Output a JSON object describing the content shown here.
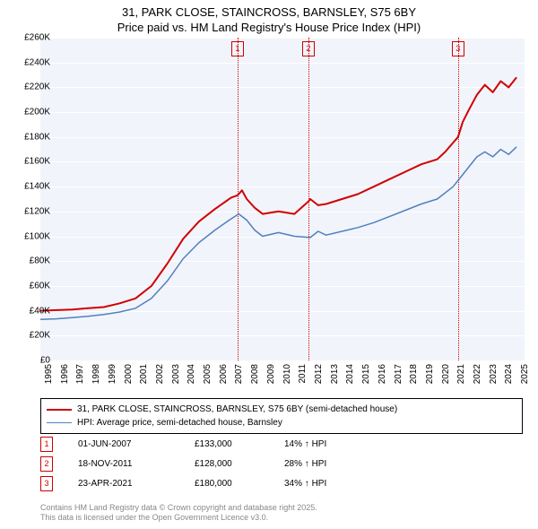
{
  "title_line1": "31, PARK CLOSE, STAINCROSS, BARNSLEY, S75 6BY",
  "title_line2": "Price paid vs. HM Land Registry's House Price Index (HPI)",
  "chart": {
    "type": "line",
    "background_color": "#f2f4fb",
    "grid_color": "#ffffff",
    "x_years": [
      1995,
      1996,
      1997,
      1998,
      1999,
      2000,
      2001,
      2002,
      2003,
      2004,
      2005,
      2006,
      2007,
      2008,
      2009,
      2010,
      2011,
      2012,
      2013,
      2014,
      2015,
      2016,
      2017,
      2018,
      2019,
      2020,
      2021,
      2022,
      2023,
      2024,
      2025
    ],
    "y_ticks": [
      0,
      20000,
      40000,
      60000,
      80000,
      100000,
      120000,
      140000,
      160000,
      180000,
      200000,
      220000,
      240000,
      260000
    ],
    "y_tick_labels": [
      "£0",
      "£20K",
      "£40K",
      "£60K",
      "£80K",
      "£100K",
      "£120K",
      "£140K",
      "£160K",
      "£180K",
      "£200K",
      "£220K",
      "£240K",
      "£260K"
    ],
    "ylim": [
      0,
      260000
    ],
    "xlim": [
      1995,
      2025.5
    ],
    "series": [
      {
        "name": "price_paid",
        "color": "#d00000",
        "width": 2,
        "legend_label": "31, PARK CLOSE, STAINCROSS, BARNSLEY, S75 6BY (semi-detached house)",
        "data": [
          [
            1995,
            40000
          ],
          [
            1996,
            40500
          ],
          [
            1997,
            41000
          ],
          [
            1998,
            42000
          ],
          [
            1999,
            43000
          ],
          [
            2000,
            46000
          ],
          [
            2001,
            50000
          ],
          [
            2002,
            60000
          ],
          [
            2003,
            78000
          ],
          [
            2004,
            98000
          ],
          [
            2005,
            112000
          ],
          [
            2006,
            122000
          ],
          [
            2007,
            131000
          ],
          [
            2007.42,
            133000
          ],
          [
            2007.7,
            137000
          ],
          [
            2008,
            130000
          ],
          [
            2008.5,
            123000
          ],
          [
            2009,
            118000
          ],
          [
            2010,
            120000
          ],
          [
            2011,
            118000
          ],
          [
            2011.88,
            128000
          ],
          [
            2012,
            130000
          ],
          [
            2012.5,
            125000
          ],
          [
            2013,
            126000
          ],
          [
            2014,
            130000
          ],
          [
            2015,
            134000
          ],
          [
            2016,
            140000
          ],
          [
            2017,
            146000
          ],
          [
            2018,
            152000
          ],
          [
            2019,
            158000
          ],
          [
            2020,
            162000
          ],
          [
            2020.5,
            168000
          ],
          [
            2021.31,
            180000
          ],
          [
            2021.6,
            192000
          ],
          [
            2022,
            202000
          ],
          [
            2022.5,
            214000
          ],
          [
            2023,
            222000
          ],
          [
            2023.5,
            216000
          ],
          [
            2024,
            225000
          ],
          [
            2024.5,
            220000
          ],
          [
            2025,
            228000
          ]
        ]
      },
      {
        "name": "hpi",
        "color": "#5080c0",
        "width": 1.5,
        "legend_label": "HPI: Average price, semi-detached house, Barnsley",
        "data": [
          [
            1995,
            33000
          ],
          [
            1996,
            33500
          ],
          [
            1997,
            34500
          ],
          [
            1998,
            35500
          ],
          [
            1999,
            37000
          ],
          [
            2000,
            39000
          ],
          [
            2001,
            42000
          ],
          [
            2002,
            50000
          ],
          [
            2003,
            64000
          ],
          [
            2004,
            82000
          ],
          [
            2005,
            95000
          ],
          [
            2006,
            105000
          ],
          [
            2007,
            114000
          ],
          [
            2007.5,
            118000
          ],
          [
            2008,
            113000
          ],
          [
            2008.5,
            105000
          ],
          [
            2009,
            100000
          ],
          [
            2010,
            103000
          ],
          [
            2011,
            100000
          ],
          [
            2012,
            99000
          ],
          [
            2012.5,
            104000
          ],
          [
            2013,
            101000
          ],
          [
            2014,
            104000
          ],
          [
            2015,
            107000
          ],
          [
            2016,
            111000
          ],
          [
            2017,
            116000
          ],
          [
            2018,
            121000
          ],
          [
            2019,
            126000
          ],
          [
            2020,
            130000
          ],
          [
            2021,
            140000
          ],
          [
            2021.5,
            148000
          ],
          [
            2022,
            156000
          ],
          [
            2022.5,
            164000
          ],
          [
            2023,
            168000
          ],
          [
            2023.5,
            164000
          ],
          [
            2024,
            170000
          ],
          [
            2024.5,
            166000
          ],
          [
            2025,
            172000
          ]
        ]
      }
    ],
    "markers": [
      {
        "id": "1",
        "x_year": 2007.42
      },
      {
        "id": "2",
        "x_year": 2011.88
      },
      {
        "id": "3",
        "x_year": 2021.31
      }
    ]
  },
  "transactions": [
    {
      "id": "1",
      "date": "01-JUN-2007",
      "price": "£133,000",
      "diff": "14% ↑ HPI"
    },
    {
      "id": "2",
      "date": "18-NOV-2011",
      "price": "£128,000",
      "diff": "28% ↑ HPI"
    },
    {
      "id": "3",
      "date": "23-APR-2021",
      "price": "£180,000",
      "diff": "34% ↑ HPI"
    }
  ],
  "footnote_line1": "Contains HM Land Registry data © Crown copyright and database right 2025.",
  "footnote_line2": "This data is licensed under the Open Government Licence v3.0."
}
